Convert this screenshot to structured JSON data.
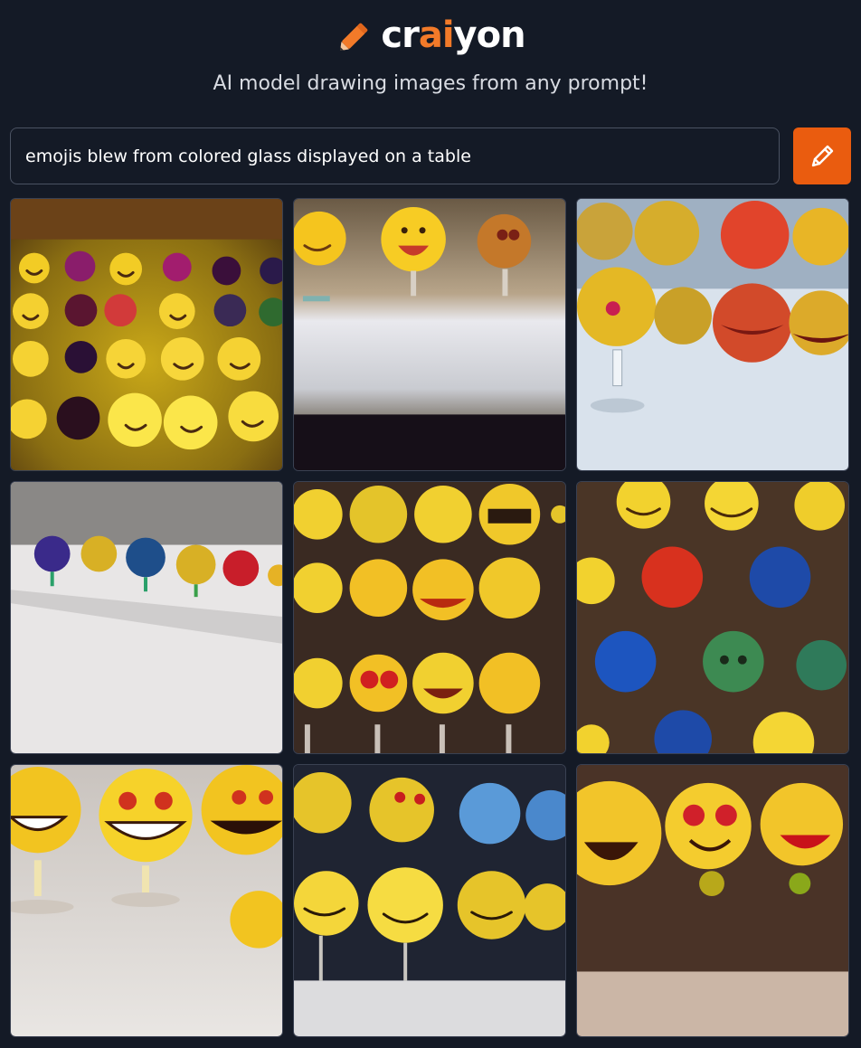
{
  "app": {
    "logo_prefix": "cr",
    "logo_accent": "ai",
    "logo_suffix": "yon",
    "tagline": "AI model drawing images from any prompt!"
  },
  "prompt": {
    "value": "emojis blew from colored glass displayed on a table",
    "placeholder": ""
  },
  "draw_button": {
    "icon": "pencil-icon",
    "aria_label": "Draw"
  },
  "colors": {
    "background": "#141a26",
    "accent": "#ea5c0f",
    "logo_accent": "#f27a29",
    "input_border": "#4a5262"
  },
  "results": [
    {
      "alt": "Generated image 1"
    },
    {
      "alt": "Generated image 2"
    },
    {
      "alt": "Generated image 3"
    },
    {
      "alt": "Generated image 4"
    },
    {
      "alt": "Generated image 5"
    },
    {
      "alt": "Generated image 6"
    },
    {
      "alt": "Generated image 7"
    },
    {
      "alt": "Generated image 8"
    },
    {
      "alt": "Generated image 9"
    }
  ]
}
